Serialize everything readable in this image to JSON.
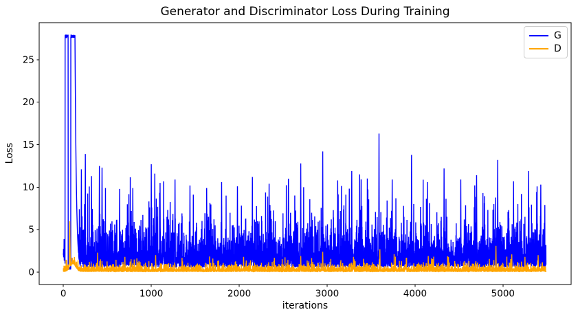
{
  "chart_data": {
    "type": "line",
    "title": "Generator and Discriminator Loss During Training",
    "xlabel": "iterations",
    "ylabel": "Loss",
    "x_ticks": [
      0,
      1000,
      2000,
      3000,
      4000,
      5000
    ],
    "y_ticks": [
      0,
      5,
      10,
      15,
      20,
      25
    ],
    "xlim": [
      -275,
      5775
    ],
    "ylim": [
      -1.45,
      29.35
    ],
    "grid": false,
    "background_color": "#ffffff",
    "spine_color": "#000000",
    "n_iterations": 5490,
    "seed": 1337,
    "legend": {
      "location": "upper right",
      "entries": [
        {
          "label": "G",
          "color": "#0000ff"
        },
        {
          "label": "D",
          "color": "#ffa500"
        }
      ]
    },
    "series": [
      {
        "name": "G",
        "color": "#0000ff",
        "description": "Generator loss: initial plateau near 27.8 with a brief dip, rapid decay, then dense noisy band roughly 0.6-8 with frequent spikes 9-16 (values below are estimates read from pixels)",
        "base": {
          "offset": 0.55,
          "scale": 1.55,
          "cap": 11.5,
          "cap_fold": 2.0
        },
        "warmup": {
          "plateau_value": 27.8,
          "plateau1": [
            20,
            55
          ],
          "dip": [
            55,
            85
          ],
          "dip_value": 0.3,
          "plateau2": [
            85,
            132
          ],
          "decay_end": 200,
          "decay_tau": 16
        },
        "notable_peaks": [
          [
            205,
            12.1
          ],
          [
            250,
            13.9
          ],
          [
            320,
            11.3
          ],
          [
            410,
            12.5
          ],
          [
            440,
            12.3
          ],
          [
            640,
            9.8
          ],
          [
            790,
            9.9
          ],
          [
            1000,
            12.7
          ],
          [
            1040,
            11.6
          ],
          [
            1100,
            10.5
          ],
          [
            1270,
            10.9
          ],
          [
            1440,
            10.2
          ],
          [
            1630,
            9.9
          ],
          [
            1800,
            10.6
          ],
          [
            1980,
            10.1
          ],
          [
            2150,
            11.2
          ],
          [
            2340,
            10.4
          ],
          [
            2560,
            11.0
          ],
          [
            2700,
            12.8
          ],
          [
            2950,
            14.2
          ],
          [
            3120,
            10.8
          ],
          [
            3280,
            11.9
          ],
          [
            3370,
            11.5
          ],
          [
            3590,
            16.3
          ],
          [
            3740,
            10.9
          ],
          [
            3960,
            13.8
          ],
          [
            4140,
            10.6
          ],
          [
            4330,
            12.2
          ],
          [
            4520,
            10.9
          ],
          [
            4700,
            11.4
          ],
          [
            4940,
            13.2
          ],
          [
            5120,
            10.7
          ],
          [
            5290,
            11.9
          ],
          [
            5430,
            10.3
          ]
        ]
      },
      {
        "name": "D",
        "color": "#ffa500",
        "description": "Discriminator loss: low noisy band roughly 0.03-1.2 with scattered bumps 1.5-2.5, early spike ~6 near iteration 73, later spike ~3.1 near iteration 4920 (estimates)",
        "base": {
          "offset": 0.03,
          "scale": 0.26,
          "cap": 2.2,
          "cap_fold": 0.5
        },
        "warmup": {
          "bump_center": 110,
          "bump_width": 45,
          "bump_height": 0.9,
          "spike_center": 73,
          "spike_half_width": 8,
          "spike_value": 6.0
        },
        "notable_peaks": [
          [
            390,
            2.3
          ],
          [
            700,
            1.8
          ],
          [
            1050,
            2.0
          ],
          [
            1350,
            1.7
          ],
          [
            1700,
            1.6
          ],
          [
            2050,
            1.8
          ],
          [
            2400,
            1.7
          ],
          [
            2700,
            1.9
          ],
          [
            2950,
            2.4
          ],
          [
            3300,
            1.8
          ],
          [
            3600,
            2.7
          ],
          [
            3900,
            1.7
          ],
          [
            4150,
            1.9
          ],
          [
            4380,
            1.8
          ],
          [
            4920,
            3.1
          ],
          [
            5100,
            2.1
          ],
          [
            5250,
            1.8
          ],
          [
            5400,
            2.0
          ]
        ]
      }
    ]
  }
}
